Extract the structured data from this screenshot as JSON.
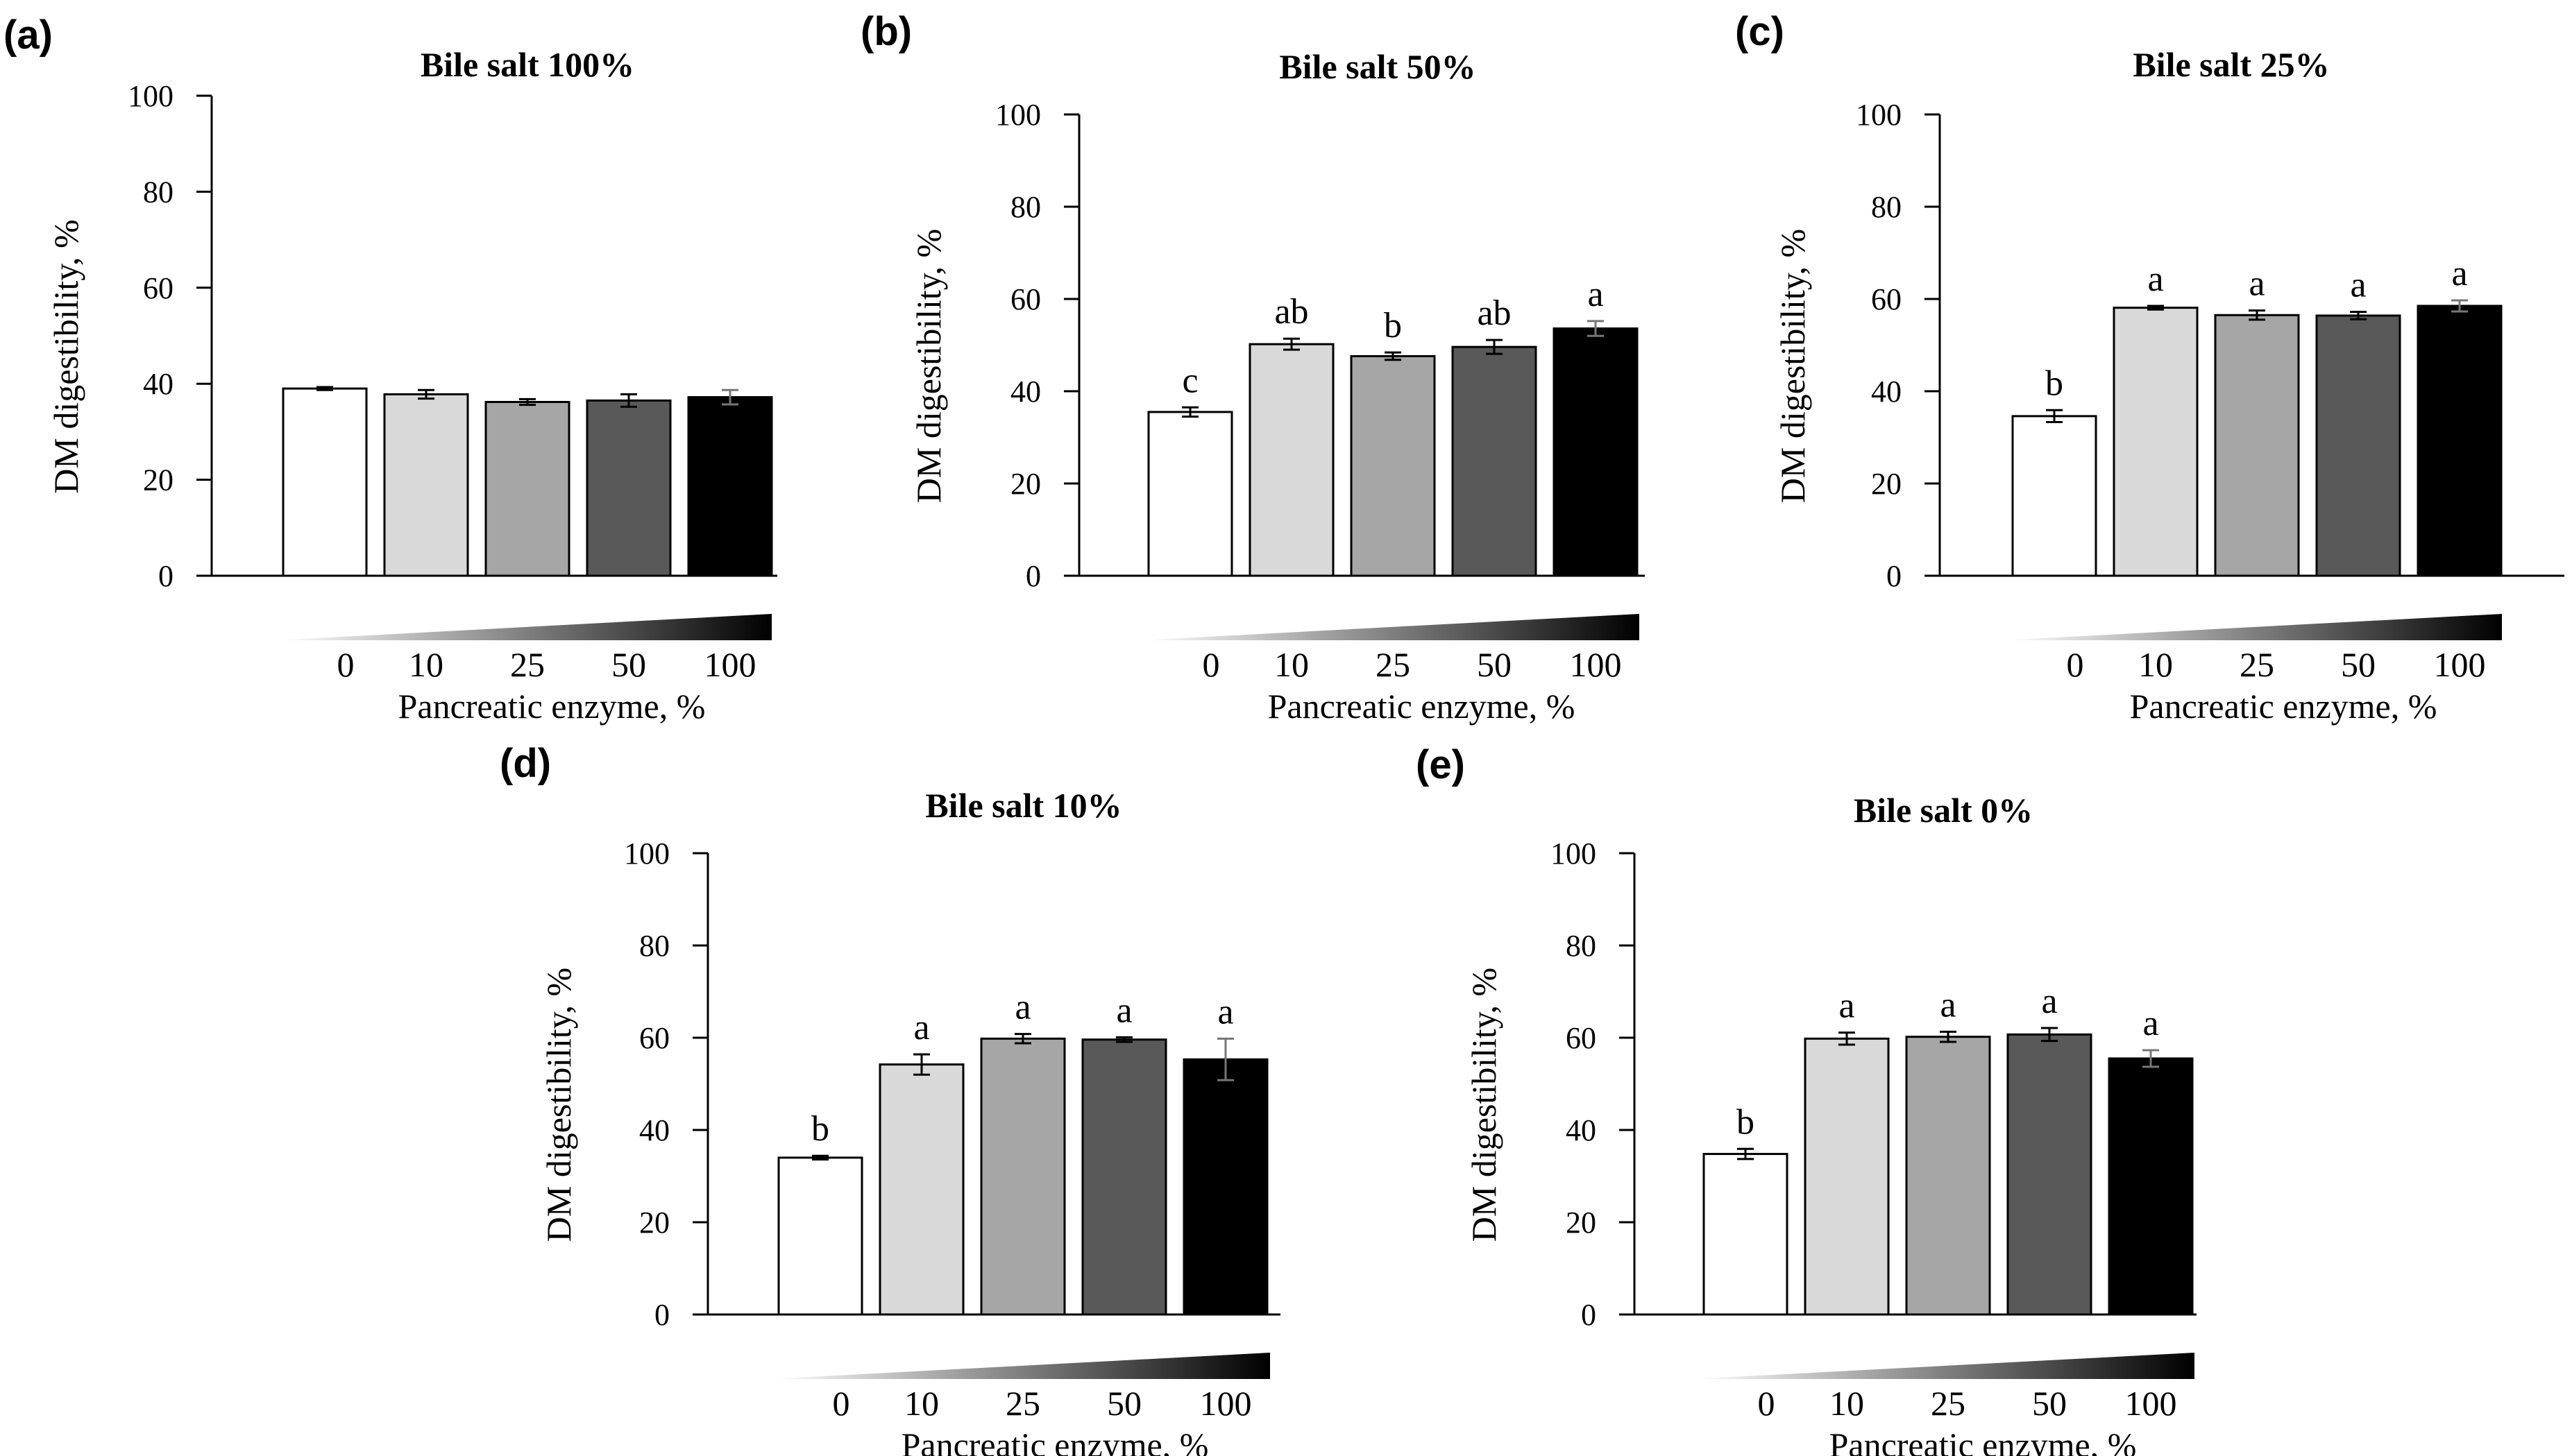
{
  "colors": {
    "bar_fills": [
      "#ffffff",
      "#d9d9d9",
      "#a6a6a6",
      "#595959",
      "#000000"
    ],
    "stroke": "#000000"
  },
  "chart_data": [
    {
      "type": "bar",
      "panel": "(a)",
      "title": "Bile salt 100%",
      "ylabel": "DM digestibility, %",
      "xlabel": "Pancreatic enzyme, %",
      "categories": [
        "0",
        "10",
        "25",
        "50",
        "100"
      ],
      "yticks": [
        "0",
        "20",
        "40",
        "60",
        "80",
        "100"
      ],
      "ylim": [
        0,
        100
      ],
      "values": [
        39,
        37.8,
        36.2,
        36.5,
        37.2
      ],
      "errors": [
        0.3,
        0.9,
        0.6,
        1.3,
        1.5
      ],
      "labels": [
        "",
        "",
        "",
        "",
        ""
      ]
    },
    {
      "type": "bar",
      "panel": "(b)",
      "title": "Bile salt 50%",
      "ylabel": "DM digestibility, %",
      "xlabel": "Pancreatic enzyme, %",
      "categories": [
        "0",
        "10",
        "25",
        "50",
        "100"
      ],
      "yticks": [
        "0",
        "20",
        "40",
        "60",
        "80",
        "100"
      ],
      "ylim": [
        0,
        100
      ],
      "values": [
        35.5,
        50.2,
        47.6,
        49.6,
        53.6
      ],
      "errors": [
        1.0,
        1.2,
        0.8,
        1.5,
        1.6
      ],
      "labels": [
        "c",
        "ab",
        "b",
        "ab",
        "a"
      ]
    },
    {
      "type": "bar",
      "panel": "(c)",
      "title": "Bile salt 25%",
      "ylabel": "DM digestibility, %",
      "xlabel": "Pancreatic enzyme, %",
      "categories": [
        "0",
        "10",
        "25",
        "50",
        "100"
      ],
      "yticks": [
        "0",
        "20",
        "40",
        "60",
        "80",
        "100"
      ],
      "ylim": [
        0,
        100
      ],
      "values": [
        34.6,
        58.1,
        56.5,
        56.4,
        58.5
      ],
      "errors": [
        1.3,
        0.4,
        1.0,
        0.8,
        1.2
      ],
      "labels": [
        "b",
        "a",
        "a",
        "a",
        "a"
      ]
    },
    {
      "type": "bar",
      "panel": "(d)",
      "title": "Bile salt 10%",
      "ylabel": "DM digestibility, %",
      "xlabel": "Pancreatic enzyme, %",
      "categories": [
        "0",
        "10",
        "25",
        "50",
        "100"
      ],
      "yticks": [
        "0",
        "20",
        "40",
        "60",
        "80",
        "100"
      ],
      "ylim": [
        0,
        100
      ],
      "values": [
        34,
        54.2,
        59.8,
        59.6,
        55.3
      ],
      "errors": [
        0.4,
        2.2,
        1.0,
        0.5,
        4.5
      ],
      "labels": [
        "b",
        "a",
        "a",
        "a",
        "a"
      ]
    },
    {
      "type": "bar",
      "panel": "(e)",
      "title": "Bile salt 0%",
      "ylabel": "DM digestibility, %",
      "xlabel": "Pancreatic enzyme, %",
      "categories": [
        "0",
        "10",
        "25",
        "50",
        "100"
      ],
      "yticks": [
        "0",
        "20",
        "40",
        "60",
        "80",
        "100"
      ],
      "ylim": [
        0,
        100
      ],
      "values": [
        34.8,
        59.8,
        60.2,
        60.7,
        55.5
      ],
      "errors": [
        1.1,
        1.3,
        1.1,
        1.4,
        1.8
      ],
      "labels": [
        "b",
        "a",
        "a",
        "a",
        "a"
      ]
    }
  ]
}
